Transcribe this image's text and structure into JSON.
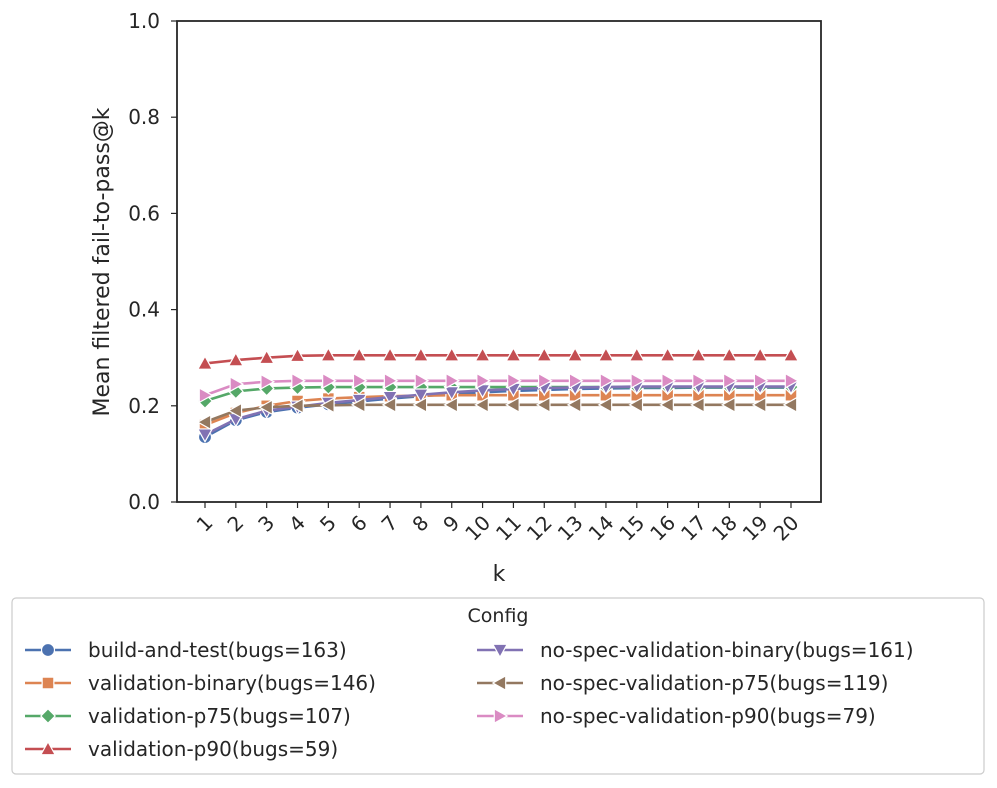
{
  "chart_data": {
    "type": "line",
    "title": "",
    "xlabel": "k",
    "ylabel": "Mean filtered fail-to-pass@k",
    "ylim": [
      0.0,
      1.0
    ],
    "yticks": [
      "0.0",
      "0.2",
      "0.4",
      "0.6",
      "0.8",
      "1.0"
    ],
    "x": [
      1,
      2,
      3,
      4,
      5,
      6,
      7,
      8,
      9,
      10,
      11,
      12,
      13,
      14,
      15,
      16,
      17,
      18,
      19,
      20
    ],
    "xtick_labels": [
      "1",
      "2",
      "3",
      "4",
      "5",
      "6",
      "7",
      "8",
      "9",
      "10",
      "11",
      "12",
      "13",
      "14",
      "15",
      "16",
      "17",
      "18",
      "19",
      "20"
    ],
    "grid": false,
    "legend": {
      "title": "Config",
      "placement": "below",
      "columns": 2
    },
    "series": [
      {
        "name": "build-and-test(bugs=163)",
        "color": "#4c72b0",
        "marker": "circle",
        "values": [
          0.135,
          0.17,
          0.187,
          0.196,
          0.203,
          0.209,
          0.215,
          0.22,
          0.225,
          0.228,
          0.231,
          0.233,
          0.235,
          0.236,
          0.237,
          0.237,
          0.238,
          0.238,
          0.238,
          0.238
        ]
      },
      {
        "name": "validation-binary(bugs=146)",
        "color": "#dd8452",
        "marker": "square",
        "values": [
          0.16,
          0.185,
          0.2,
          0.21,
          0.215,
          0.218,
          0.22,
          0.221,
          0.222,
          0.222,
          0.222,
          0.222,
          0.222,
          0.222,
          0.222,
          0.222,
          0.222,
          0.222,
          0.222,
          0.222
        ]
      },
      {
        "name": "validation-p75(bugs=107)",
        "color": "#55a868",
        "marker": "diamond",
        "values": [
          0.21,
          0.23,
          0.236,
          0.238,
          0.239,
          0.239,
          0.239,
          0.239,
          0.239,
          0.239,
          0.239,
          0.239,
          0.239,
          0.239,
          0.239,
          0.239,
          0.239,
          0.239,
          0.239,
          0.239
        ]
      },
      {
        "name": "validation-p90(bugs=59)",
        "color": "#c44e52",
        "marker": "triangle-up",
        "values": [
          0.288,
          0.295,
          0.3,
          0.304,
          0.305,
          0.305,
          0.305,
          0.305,
          0.305,
          0.305,
          0.305,
          0.305,
          0.305,
          0.305,
          0.305,
          0.305,
          0.305,
          0.305,
          0.305,
          0.305
        ]
      },
      {
        "name": "no-spec-validation-binary(bugs=161)",
        "color": "#8172b3",
        "marker": "triangle-down",
        "values": [
          0.14,
          0.172,
          0.19,
          0.198,
          0.206,
          0.212,
          0.218,
          0.223,
          0.228,
          0.232,
          0.235,
          0.237,
          0.238,
          0.239,
          0.24,
          0.24,
          0.24,
          0.24,
          0.24,
          0.24
        ]
      },
      {
        "name": "no-spec-validation-p75(bugs=119)",
        "color": "#937860",
        "marker": "triangle-left",
        "values": [
          0.166,
          0.19,
          0.197,
          0.2,
          0.201,
          0.202,
          0.202,
          0.202,
          0.202,
          0.202,
          0.202,
          0.202,
          0.202,
          0.202,
          0.202,
          0.202,
          0.202,
          0.202,
          0.202,
          0.202
        ]
      },
      {
        "name": "no-spec-validation-p90(bugs=79)",
        "color": "#da8bc3",
        "marker": "triangle-right",
        "values": [
          0.222,
          0.245,
          0.25,
          0.252,
          0.252,
          0.252,
          0.252,
          0.252,
          0.252,
          0.252,
          0.252,
          0.252,
          0.252,
          0.252,
          0.252,
          0.252,
          0.252,
          0.252,
          0.252,
          0.252
        ]
      }
    ]
  }
}
